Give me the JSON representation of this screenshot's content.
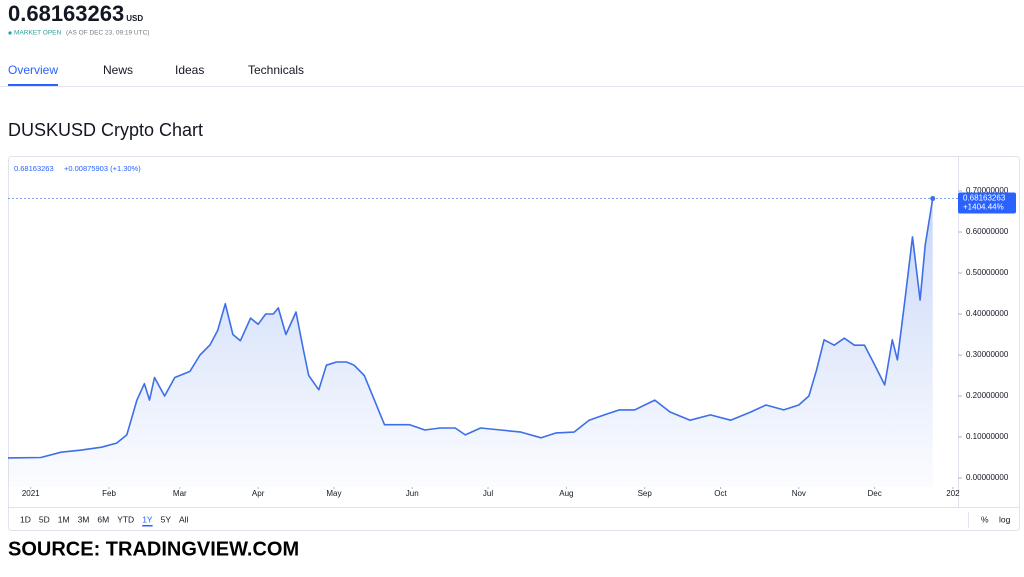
{
  "header": {
    "price": "0.68163263",
    "currency": "USD",
    "status": "MARKET OPEN",
    "as_of": "(AS OF DEC 23, 09:19 UTC)"
  },
  "tabs": [
    "Overview",
    "News",
    "Ideas",
    "Technicals"
  ],
  "active_tab": "Overview",
  "section_title": "DUSKUSD Crypto Chart",
  "chart_data": {
    "type": "line",
    "info": {
      "price": "0.68163263",
      "change": "+0.00875903 (+1.30%)"
    },
    "price_tag": [
      "0.68163263",
      "+1404.44%"
    ],
    "color": "#3d6fe8",
    "grid": false,
    "x": [
      -9,
      4,
      12,
      20,
      28,
      34,
      38,
      42,
      45,
      47,
      49,
      53,
      57,
      63,
      67,
      71,
      74,
      77,
      80,
      83,
      87,
      90,
      93,
      96,
      98,
      101,
      105,
      108,
      110,
      114,
      117,
      121,
      125,
      128,
      132,
      136,
      140,
      144,
      150,
      156,
      162,
      168,
      172,
      178,
      186,
      194,
      202,
      208,
      215,
      221,
      227,
      233,
      239,
      247,
      253,
      261,
      269,
      277,
      285,
      291,
      298,
      304,
      308,
      311,
      314,
      318,
      322,
      326,
      330,
      334,
      338,
      341,
      343,
      346,
      349,
      352,
      354,
      357
    ],
    "values": [
      0.049,
      0.05,
      0.063,
      0.068,
      0.075,
      0.085,
      0.105,
      0.19,
      0.23,
      0.19,
      0.245,
      0.2,
      0.245,
      0.26,
      0.3,
      0.325,
      0.36,
      0.425,
      0.35,
      0.335,
      0.39,
      0.375,
      0.4,
      0.4,
      0.415,
      0.35,
      0.405,
      0.31,
      0.25,
      0.215,
      0.275,
      0.283,
      0.283,
      0.275,
      0.25,
      0.19,
      0.13,
      0.13,
      0.13,
      0.117,
      0.122,
      0.122,
      0.105,
      0.122,
      0.117,
      0.112,
      0.098,
      0.11,
      0.112,
      0.141,
      0.154,
      0.166,
      0.166,
      0.19,
      0.161,
      0.141,
      0.154,
      0.141,
      0.161,
      0.178,
      0.166,
      0.178,
      0.2,
      0.263,
      0.337,
      0.324,
      0.341,
      0.324,
      0.324,
      0.276,
      0.227,
      0.337,
      0.288,
      0.434,
      0.588,
      0.434,
      0.568,
      0.68163263
    ],
    "xlim": [
      -9,
      367
    ],
    "xticks": [
      {
        "value": 0,
        "label": "2021"
      },
      {
        "value": 31,
        "label": "Feb"
      },
      {
        "value": 59,
        "label": "Mar"
      },
      {
        "value": 90,
        "label": "Apr"
      },
      {
        "value": 120,
        "label": "May"
      },
      {
        "value": 151,
        "label": "Jun"
      },
      {
        "value": 181,
        "label": "Jul"
      },
      {
        "value": 212,
        "label": "Aug"
      },
      {
        "value": 243,
        "label": "Sep"
      },
      {
        "value": 273,
        "label": "Oct"
      },
      {
        "value": 304,
        "label": "Nov"
      },
      {
        "value": 334,
        "label": "Dec"
      },
      {
        "value": 365,
        "label": "202"
      }
    ],
    "ylim": [
      -0.022,
      0.783
    ],
    "yticks": [
      {
        "value": 0,
        "label": "0.00000000"
      },
      {
        "value": 0.1,
        "label": "0.10000000"
      },
      {
        "value": 0.2,
        "label": "0.20000000"
      },
      {
        "value": 0.3,
        "label": "0.30000000"
      },
      {
        "value": 0.4,
        "label": "0.40000000"
      },
      {
        "value": 0.5,
        "label": "0.50000000"
      },
      {
        "value": 0.6,
        "label": "0.60000000"
      },
      {
        "value": 0.7,
        "label": "0.70000000"
      }
    ],
    "ranges": [
      "1D",
      "5D",
      "1M",
      "3M",
      "6M",
      "YTD",
      "1Y",
      "5Y",
      "All"
    ],
    "active_range": "1Y",
    "scale_options": [
      "%",
      "log"
    ]
  },
  "source": "SOURCE: TRADINGVIEW.COM"
}
